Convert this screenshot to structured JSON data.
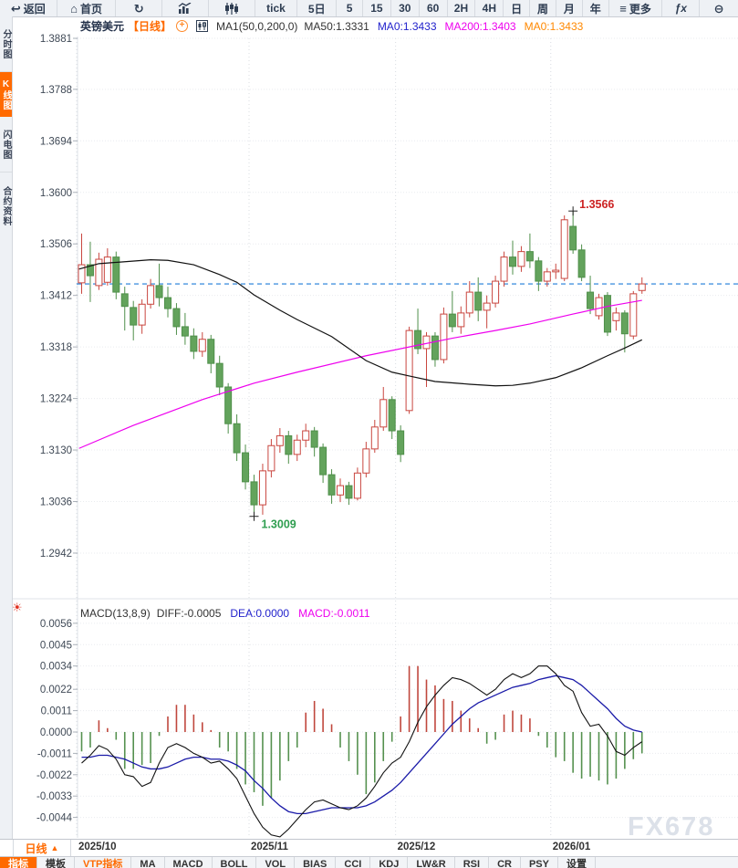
{
  "toolbar": {
    "items": [
      {
        "label": "返回",
        "icon": "back-icon"
      },
      {
        "label": "首页",
        "icon": "home-icon"
      },
      {
        "label": "",
        "icon": "refresh-icon"
      },
      {
        "label": "",
        "icon": "line-chart-icon"
      },
      {
        "label": "",
        "icon": "candlestick-icon"
      },
      {
        "label": "tick"
      },
      {
        "label": "5日"
      },
      {
        "label": "5"
      },
      {
        "label": "15"
      },
      {
        "label": "30"
      },
      {
        "label": "60"
      },
      {
        "label": "2H"
      },
      {
        "label": "4H"
      },
      {
        "label": "日"
      },
      {
        "label": "周"
      },
      {
        "label": "月"
      },
      {
        "label": "年"
      },
      {
        "label": "更多",
        "icon": "menu-icon"
      },
      {
        "label": "ƒx",
        "icon": "fx-icon"
      },
      {
        "label": "",
        "icon": "zoom-out-icon"
      }
    ]
  },
  "sidebar": {
    "items": [
      {
        "label": "分时图",
        "active": false
      },
      {
        "label": "K线图",
        "active": true
      },
      {
        "label": "闪电图",
        "active": false
      },
      {
        "label": "合约资料",
        "active": false
      }
    ]
  },
  "chart_header": {
    "symbol": "英镑美元",
    "period": "【日线】",
    "plus": "+",
    "ma_settings": "MA1(50,0,200,0)",
    "ma50": "MA50:1.3331",
    "ma0_blue": "MA0:1.3433",
    "ma200": "MA200:1.3403",
    "ma0_orange": "MA0:1.3433"
  },
  "macd_header": {
    "title": "MACD(13,8,9)",
    "diff": "DIFF:-0.0005",
    "dea": "DEA:0.0000",
    "macd": "MACD:-0.0011",
    "gear": "☀"
  },
  "daterow": {
    "period_label": "日线",
    "arrow": "▲"
  },
  "footer": {
    "tabs": [
      {
        "label": "指标",
        "active": true
      },
      {
        "label": "模板"
      },
      {
        "label": "VTP指标",
        "highlight": true
      },
      {
        "label": "MA"
      },
      {
        "label": "MACD"
      },
      {
        "label": "BOLL"
      },
      {
        "label": "VOL"
      },
      {
        "label": "BIAS"
      },
      {
        "label": "CCI"
      },
      {
        "label": "KDJ"
      },
      {
        "label": "LW&R"
      },
      {
        "label": "RSI"
      },
      {
        "label": "CR"
      },
      {
        "label": "PSY"
      },
      {
        "label": "设置"
      }
    ]
  },
  "watermark": "FX678",
  "chart_data": {
    "type": "candlestick",
    "title": "英镑美元 日线 (GBP/USD Daily)",
    "price_axis_labels": [
      "1.3881",
      "1.3788",
      "1.3694",
      "1.3600",
      "1.3506",
      "1.3412",
      "1.3318",
      "1.3224",
      "1.3130",
      "1.3036",
      "1.2942"
    ],
    "macd_axis_labels": [
      "0.0056",
      "0.0045",
      "0.0034",
      "0.0022",
      "0.0011",
      "0.0000",
      "-0.0011",
      "-0.0022",
      "-0.0033",
      "-0.0044"
    ],
    "months": [
      {
        "label": "2025/10",
        "index": 0
      },
      {
        "label": "2025/11",
        "index": 20
      },
      {
        "label": "2025/12",
        "index": 37
      },
      {
        "label": "2026/01",
        "index": 55
      }
    ],
    "current_price": 1.3433,
    "annotations": {
      "high": {
        "index": 57,
        "price": 1.3566,
        "label": "1.3566"
      },
      "low": {
        "index": 20,
        "price": 1.3009,
        "label": "1.3009"
      }
    },
    "candles": [
      [
        1.3435,
        1.3525,
        1.3415,
        1.3468
      ],
      [
        1.3468,
        1.351,
        1.34,
        1.3448
      ],
      [
        1.343,
        1.349,
        1.3422,
        1.3478
      ],
      [
        1.3436,
        1.3498,
        1.343,
        1.3482
      ],
      [
        1.3482,
        1.3492,
        1.3405,
        1.3418
      ],
      [
        1.3415,
        1.3428,
        1.3348,
        1.3392
      ],
      [
        1.339,
        1.3402,
        1.333,
        1.3358
      ],
      [
        1.3358,
        1.3405,
        1.3342,
        1.3396
      ],
      [
        1.3396,
        1.3442,
        1.3388,
        1.343
      ],
      [
        1.343,
        1.347,
        1.3392,
        1.3408
      ],
      [
        1.3408,
        1.3428,
        1.3372,
        1.3388
      ],
      [
        1.3388,
        1.3398,
        1.334,
        1.3355
      ],
      [
        1.3355,
        1.338,
        1.3322,
        1.3338
      ],
      [
        1.3338,
        1.3352,
        1.3296,
        1.331
      ],
      [
        1.331,
        1.3345,
        1.33,
        1.3332
      ],
      [
        1.3332,
        1.334,
        1.327,
        1.3288
      ],
      [
        1.3288,
        1.3302,
        1.323,
        1.3245
      ],
      [
        1.3245,
        1.3252,
        1.316,
        1.3178
      ],
      [
        1.3178,
        1.3195,
        1.311,
        1.3125
      ],
      [
        1.3125,
        1.314,
        1.3058,
        1.3072
      ],
      [
        1.3072,
        1.3085,
        1.3009,
        1.303
      ],
      [
        1.303,
        1.3105,
        1.3012,
        1.3092
      ],
      [
        1.3092,
        1.315,
        1.308,
        1.3138
      ],
      [
        1.3138,
        1.317,
        1.3125,
        1.3156
      ],
      [
        1.3156,
        1.3165,
        1.3105,
        1.3122
      ],
      [
        1.3122,
        1.3158,
        1.311,
        1.3148
      ],
      [
        1.3148,
        1.3178,
        1.3135,
        1.3165
      ],
      [
        1.3165,
        1.3172,
        1.3118,
        1.3135
      ],
      [
        1.3135,
        1.3142,
        1.307,
        1.3085
      ],
      [
        1.3085,
        1.3095,
        1.3032,
        1.3048
      ],
      [
        1.3048,
        1.3078,
        1.3035,
        1.3065
      ],
      [
        1.3065,
        1.3072,
        1.303,
        1.3042
      ],
      [
        1.3042,
        1.3098,
        1.3038,
        1.3088
      ],
      [
        1.3088,
        1.3145,
        1.308,
        1.3132
      ],
      [
        1.3132,
        1.3185,
        1.3125,
        1.3172
      ],
      [
        1.3172,
        1.3245,
        1.3165,
        1.3222
      ],
      [
        1.3222,
        1.3228,
        1.315,
        1.3165
      ],
      [
        1.3165,
        1.3175,
        1.3108,
        1.3122
      ],
      [
        1.3202,
        1.3355,
        1.3196,
        1.3348
      ],
      [
        1.3348,
        1.3388,
        1.3305,
        1.3315
      ],
      [
        1.3315,
        1.3345,
        1.3245,
        1.3338
      ],
      [
        1.3338,
        1.3345,
        1.3282,
        1.3295
      ],
      [
        1.3295,
        1.339,
        1.3288,
        1.3378
      ],
      [
        1.3378,
        1.342,
        1.3345,
        1.3355
      ],
      [
        1.3355,
        1.3392,
        1.3342,
        1.338
      ],
      [
        1.338,
        1.3438,
        1.3372,
        1.3418
      ],
      [
        1.3418,
        1.3445,
        1.3365,
        1.3385
      ],
      [
        1.3385,
        1.3412,
        1.3352,
        1.3398
      ],
      [
        1.3398,
        1.3448,
        1.339,
        1.3438
      ],
      [
        1.3438,
        1.3492,
        1.3428,
        1.3482
      ],
      [
        1.3482,
        1.3512,
        1.345,
        1.3465
      ],
      [
        1.3465,
        1.3502,
        1.3455,
        1.3492
      ],
      [
        1.3492,
        1.3525,
        1.3462,
        1.3475
      ],
      [
        1.3475,
        1.3482,
        1.342,
        1.3438
      ],
      [
        1.3438,
        1.3462,
        1.3428,
        1.3455
      ],
      [
        1.3455,
        1.347,
        1.3442,
        1.3458
      ],
      [
        1.3443,
        1.3558,
        1.3438,
        1.355
      ],
      [
        1.3538,
        1.3566,
        1.3488,
        1.3495
      ],
      [
        1.3495,
        1.3505,
        1.3438,
        1.3445
      ],
      [
        1.3418,
        1.3448,
        1.3378,
        1.3388
      ],
      [
        1.3375,
        1.3415,
        1.3368,
        1.3408
      ],
      [
        1.3412,
        1.3418,
        1.3338,
        1.3345
      ],
      [
        1.3366,
        1.339,
        1.3348,
        1.338
      ],
      [
        1.338,
        1.3385,
        1.3308,
        1.3342
      ],
      [
        1.3338,
        1.342,
        1.3332,
        1.3415
      ],
      [
        1.3421,
        1.3445,
        1.3415,
        1.3433
      ]
    ],
    "ma50_points": [
      [
        -0.3,
        1.346
      ],
      [
        2,
        1.347
      ],
      [
        8,
        1.3477
      ],
      [
        10,
        1.3476
      ],
      [
        13,
        1.3468
      ],
      [
        16,
        1.345
      ],
      [
        18,
        1.3436
      ],
      [
        20,
        1.3413
      ],
      [
        23,
        1.3385
      ],
      [
        25,
        1.3368
      ],
      [
        29,
        1.3337
      ],
      [
        33,
        1.3293
      ],
      [
        36,
        1.3272
      ],
      [
        38,
        1.3265
      ],
      [
        41,
        1.3255
      ],
      [
        45,
        1.325
      ],
      [
        48,
        1.3247
      ],
      [
        50,
        1.3248
      ],
      [
        52,
        1.3252
      ],
      [
        55,
        1.3262
      ],
      [
        58,
        1.328
      ],
      [
        61,
        1.3302
      ],
      [
        63,
        1.3316
      ],
      [
        65,
        1.3331
      ]
    ],
    "ma200_points": [
      [
        -0.3,
        1.3133
      ],
      [
        6,
        1.3175
      ],
      [
        14,
        1.3222
      ],
      [
        20,
        1.3252
      ],
      [
        25,
        1.3272
      ],
      [
        33,
        1.3302
      ],
      [
        38,
        1.3318
      ],
      [
        43,
        1.3334
      ],
      [
        48,
        1.3348
      ],
      [
        52,
        1.336
      ],
      [
        57,
        1.3378
      ],
      [
        61,
        1.3392
      ],
      [
        65,
        1.3403
      ]
    ],
    "macd": {
      "hist": [
        -0.001,
        -0.0008,
        0.0006,
        0.0002,
        -0.0004,
        -0.0019,
        -0.0019,
        -0.0017,
        -0.0016,
        -0.0002,
        0.0008,
        0.0014,
        0.0014,
        0.0009,
        0.0005,
        0.0001,
        -0.0008,
        -0.001,
        -0.0019,
        -0.0027,
        -0.0031,
        -0.0038,
        -0.0034,
        -0.0025,
        -0.0015,
        -0.0008,
        0.001,
        0.0016,
        0.0012,
        0.0004,
        -0.0008,
        -0.0015,
        -0.0022,
        -0.0032,
        -0.0026,
        -0.0015,
        -0.0005,
        0.0008,
        0.0034,
        0.0034,
        0.0027,
        0.0024,
        0.0017,
        0.0016,
        0.0011,
        0.0007,
        0.0002,
        -0.0006,
        -0.0004,
        0.0009,
        0.0011,
        0.0009,
        0.0007,
        -0.0002,
        -0.0008,
        -0.0013,
        -0.0015,
        -0.0021,
        -0.0024,
        -0.0023,
        -0.0025,
        -0.0027,
        -0.0024,
        -0.0019,
        -0.0014,
        -0.0011
      ],
      "diff": [
        -0.0016,
        -0.0012,
        -0.0007,
        -0.0009,
        -0.0014,
        -0.0022,
        -0.0023,
        -0.0028,
        -0.0026,
        -0.0016,
        -0.0008,
        -0.0006,
        -0.0008,
        -0.0011,
        -0.0013,
        -0.0016,
        -0.0015,
        -0.0019,
        -0.0024,
        -0.0033,
        -0.0042,
        -0.0049,
        -0.0053,
        -0.0054,
        -0.005,
        -0.0045,
        -0.004,
        -0.0036,
        -0.0035,
        -0.0037,
        -0.0039,
        -0.004,
        -0.0038,
        -0.0034,
        -0.0028,
        -0.0021,
        -0.0016,
        -0.0013,
        -0.0005,
        0.0005,
        0.0013,
        0.0019,
        0.0024,
        0.0028,
        0.0027,
        0.0025,
        0.0022,
        0.0019,
        0.0022,
        0.0027,
        0.003,
        0.0028,
        0.003,
        0.0034,
        0.0034,
        0.003,
        0.0024,
        0.0021,
        0.001,
        0.0003,
        0.0004,
        -0.0002,
        -0.001,
        -0.0012,
        -0.0008,
        -0.0005
      ],
      "dea": [
        -0.0013,
        -0.0013,
        -0.0012,
        -0.0012,
        -0.0013,
        -0.0014,
        -0.0016,
        -0.0018,
        -0.0019,
        -0.0019,
        -0.0018,
        -0.0016,
        -0.0014,
        -0.0013,
        -0.0013,
        -0.0014,
        -0.0014,
        -0.0015,
        -0.0017,
        -0.002,
        -0.0025,
        -0.0029,
        -0.0034,
        -0.0038,
        -0.0041,
        -0.0042,
        -0.0042,
        -0.0041,
        -0.004,
        -0.0039,
        -0.0039,
        -0.0039,
        -0.0039,
        -0.0038,
        -0.0036,
        -0.0033,
        -0.003,
        -0.0026,
        -0.0021,
        -0.0016,
        -0.0011,
        -0.0006,
        -0.0001,
        0.0004,
        0.0008,
        0.0012,
        0.0015,
        0.0017,
        0.0019,
        0.0021,
        0.0023,
        0.0024,
        0.0025,
        0.0027,
        0.0028,
        0.0029,
        0.0028,
        0.0027,
        0.0024,
        0.002,
        0.0016,
        0.0012,
        0.0007,
        0.0003,
        0.0001,
        0.0
      ]
    },
    "colors": {
      "bull": "#c9463f",
      "bear_fill": "#63a35c",
      "bear_stroke": "#4f8f4a",
      "ma50": "#111111",
      "ma200": "#ee00ee",
      "current_line": "#1e7cd8",
      "hist_up": "#c0473d",
      "hist_down": "#55914f",
      "diff_line": "#111111",
      "dea_line": "#1a1aa8",
      "annotation_high": "#cc2222",
      "annotation_low": "#2f9e50",
      "grid": "#e9ebef",
      "month_grid": "#d8dce2",
      "axis_text": "#3f4956"
    }
  }
}
